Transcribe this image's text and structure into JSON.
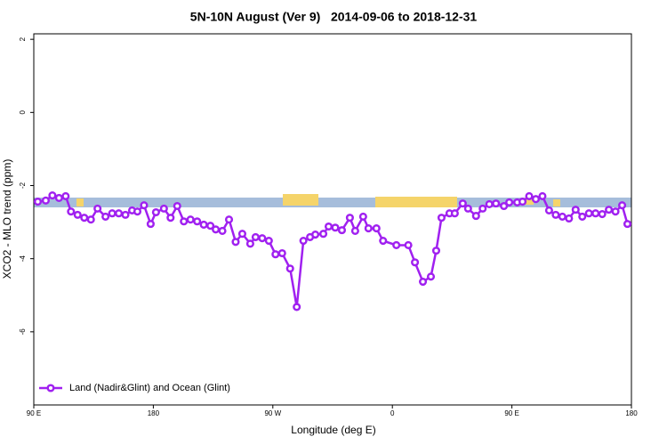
{
  "chart_data": {
    "type": "line",
    "title": "5N-10N August (Ver 9)   2014-09-06 to 2018-12-31",
    "x_label": "Longitude (deg E)",
    "y_label": "XCO2 - MLO trend (ppm)",
    "xlim": [
      90,
      540
    ],
    "ylim": [
      -8.0,
      2.15
    ],
    "xticks": [
      {
        "value": 90,
        "label": "90 E"
      },
      {
        "value": 180,
        "label": "180"
      },
      {
        "value": 270,
        "label": "90 W"
      },
      {
        "value": 360,
        "label": "0"
      },
      {
        "value": 450,
        "label": "90 E"
      },
      {
        "value": 540,
        "label": "180"
      }
    ],
    "yticks": [
      2,
      0,
      -2,
      -4,
      -6
    ],
    "legend_position": "lower left",
    "series": [
      {
        "name": "Land (Nadir&Glint) and Ocean (Glint)",
        "color": "#a020f0",
        "x": [
          93,
          99,
          104,
          109,
          114,
          118,
          123,
          128,
          133,
          138,
          144,
          149,
          154,
          159,
          164,
          168,
          173,
          178,
          182,
          188,
          193,
          198,
          203,
          208,
          213,
          218,
          223,
          227,
          232,
          237,
          242,
          247,
          253,
          257,
          262,
          267,
          272,
          277,
          283,
          288,
          293,
          298,
          302,
          308,
          312,
          317,
          322,
          328,
          332,
          338,
          342,
          348,
          353,
          363,
          372,
          377,
          383,
          389,
          393,
          397,
          403,
          407,
          413,
          417,
          423,
          428,
          433,
          438,
          444,
          448,
          454,
          458,
          463,
          468,
          473,
          478,
          483,
          488,
          493,
          498,
          503,
          508,
          513,
          518,
          523,
          528,
          533,
          537
        ],
        "values": [
          -2.44,
          -2.41,
          -2.27,
          -2.34,
          -2.29,
          -2.71,
          -2.8,
          -2.88,
          -2.93,
          -2.63,
          -2.85,
          -2.76,
          -2.76,
          -2.8,
          -2.68,
          -2.71,
          -2.54,
          -3.05,
          -2.73,
          -2.63,
          -2.88,
          -2.56,
          -2.98,
          -2.93,
          -2.98,
          -3.07,
          -3.1,
          -3.2,
          -3.24,
          -2.93,
          -3.54,
          -3.32,
          -3.59,
          -3.41,
          -3.44,
          -3.51,
          -3.88,
          -3.85,
          -4.27,
          -5.32,
          -3.51,
          -3.41,
          -3.34,
          -3.32,
          -3.12,
          -3.15,
          -3.22,
          -2.88,
          -3.24,
          -2.85,
          -3.17,
          -3.17,
          -3.51,
          -3.63,
          -3.63,
          -4.1,
          -4.63,
          -4.49,
          -3.78,
          -2.88,
          -2.76,
          -2.76,
          -2.49,
          -2.63,
          -2.83,
          -2.63,
          -2.51,
          -2.49,
          -2.56,
          -2.46,
          -2.46,
          -2.44,
          -2.29,
          -2.37,
          -2.29,
          -2.68,
          -2.8,
          -2.85,
          -2.9,
          -2.66,
          -2.85,
          -2.76,
          -2.76,
          -2.78,
          -2.66,
          -2.71,
          -2.54,
          -3.05
        ]
      }
    ]
  }
}
